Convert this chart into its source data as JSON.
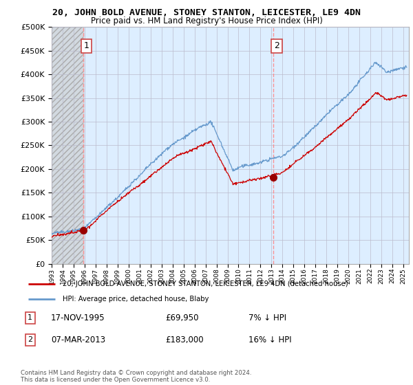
{
  "title": "20, JOHN BOLD AVENUE, STONEY STANTON, LEICESTER, LE9 4DN",
  "subtitle": "Price paid vs. HM Land Registry's House Price Index (HPI)",
  "ylim": [
    0,
    500000
  ],
  "xlim_start": 1993.0,
  "xlim_end": 2025.5,
  "sale1_x": 1995.88,
  "sale1_y": 69950,
  "sale1_label": "1",
  "sale1_date": "17-NOV-1995",
  "sale1_price": "£69,950",
  "sale1_hpi": "7% ↓ HPI",
  "sale2_x": 2013.17,
  "sale2_y": 183000,
  "sale2_label": "2",
  "sale2_date": "07-MAR-2013",
  "sale2_price": "£183,000",
  "sale2_hpi": "16% ↓ HPI",
  "legend_property": "20, JOHN BOLD AVENUE, STONEY STANTON, LEICESTER, LE9 4DN (detached house)",
  "legend_hpi": "HPI: Average price, detached house, Blaby",
  "copyright": "Contains HM Land Registry data © Crown copyright and database right 2024.\nThis data is licensed under the Open Government Licence v3.0.",
  "line_color_property": "#cc0000",
  "line_color_hpi": "#6699cc",
  "dashed_vline_color": "#ff8888",
  "plot_bg_color": "#ddeeff",
  "hatch_bg_color": "#cccccc",
  "grid_color": "#bbbbcc",
  "marker_color": "#990000"
}
